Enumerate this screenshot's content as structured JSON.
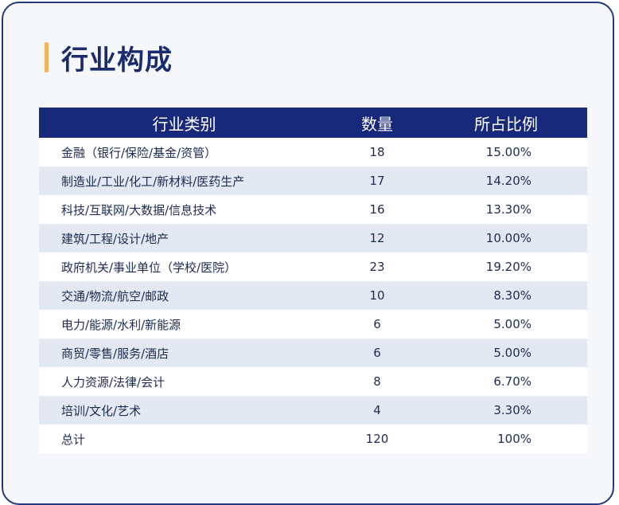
{
  "title": "行业构成",
  "table": {
    "headers": [
      "行业类别",
      "数量",
      "所占比例"
    ],
    "rows": [
      {
        "category": "金融（银行/保险/基金/资管）",
        "count": "18",
        "ratio": "15.00%"
      },
      {
        "category": "制造业/工业/化工/新材料/医药生产",
        "count": "17",
        "ratio": "14.20%"
      },
      {
        "category": "科技/互联网/大数据/信息技术",
        "count": "16",
        "ratio": "13.30%"
      },
      {
        "category": "建筑/工程/设计/地产",
        "count": "12",
        "ratio": "10.00%"
      },
      {
        "category": "政府机关/事业单位（学校/医院）",
        "count": "23",
        "ratio": "19.20%"
      },
      {
        "category": "交通/物流/航空/邮政",
        "count": "10",
        "ratio": "8.30%"
      },
      {
        "category": "电力/能源/水利/新能源",
        "count": "6",
        "ratio": "5.00%"
      },
      {
        "category": "商贸/零售/服务/酒店",
        "count": "6",
        "ratio": "5.00%"
      },
      {
        "category": "人力资源/法律/会计",
        "count": "8",
        "ratio": "6.70%"
      },
      {
        "category": "培训/文化/艺术",
        "count": "4",
        "ratio": "3.30%"
      },
      {
        "category": "总计",
        "count": "120",
        "ratio": "100%"
      }
    ]
  },
  "colors": {
    "header_bg": "#18287a",
    "accent_bar": "#f5b25c",
    "title": "#1a2c6e",
    "row_alt": "#e4e8f3",
    "border": "#243a7e"
  }
}
